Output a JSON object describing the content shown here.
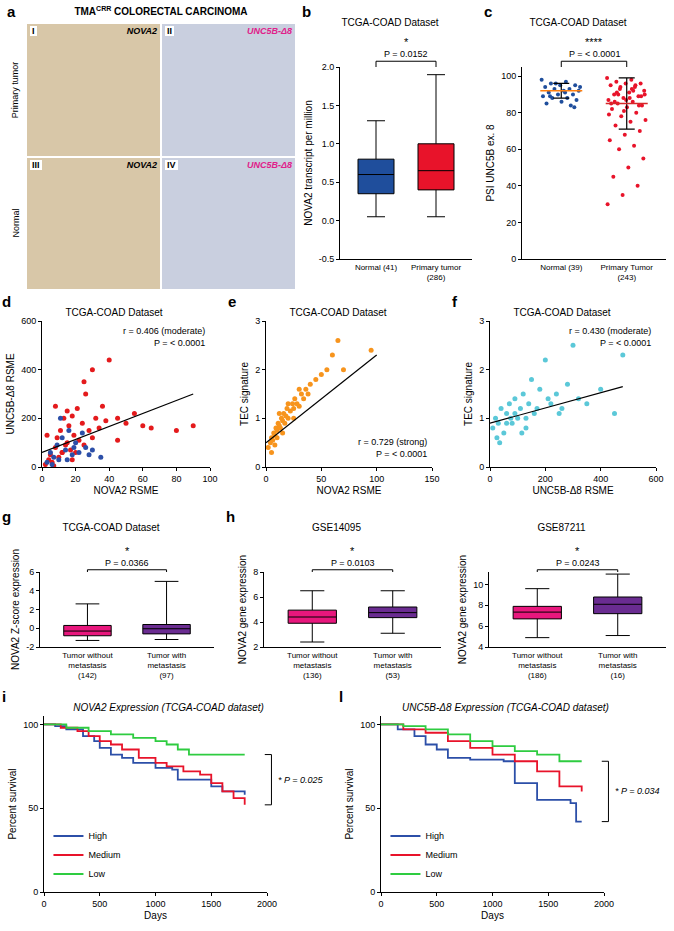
{
  "chart_data": [
    {
      "type": "image",
      "panel": "a",
      "title": "TMA",
      "title_superscript": "CRR",
      "title_rest": "COLORECTAL CARCINOMA",
      "rows": [
        {
          "label": "Primary tumor",
          "tiles": [
            {
              "label": "I",
              "stain": "NOVA2"
            },
            {
              "label": "II",
              "stain": "UNC5B-Δ8"
            }
          ]
        },
        {
          "label": "Normal",
          "tiles": [
            {
              "label": "III",
              "stain": "NOVA2"
            },
            {
              "label": "IV",
              "stain": "UNC5B-Δ8"
            }
          ]
        }
      ]
    },
    {
      "type": "box",
      "panel": "b",
      "title": "TCGA-COAD Dataset",
      "y_label": "NOVA2 transcript per million",
      "ylim": [
        -0.5,
        2.0
      ],
      "yticks": [
        -0.5,
        {
          "value": 0,
          "label": "0.0"
        },
        0.5,
        {
          "value": 1,
          "label": "1.0"
        },
        1.5,
        {
          "value": 2,
          "label": "2.0"
        }
      ],
      "grid": false,
      "groups": [
        {
          "name": "Normal (41)",
          "color": "#1f4e9c",
          "min": 0.05,
          "q1": 0.35,
          "median": 0.6,
          "q3": 0.8,
          "max": 1.3
        },
        {
          "name": "Primary tumor (286)",
          "color": "#e8132a",
          "min": 0.05,
          "q1": 0.4,
          "median": 0.65,
          "q3": 1.0,
          "max": 1.9
        }
      ],
      "significance": {
        "stars": "*",
        "p": "P = 0.0152"
      }
    },
    {
      "type": "strip",
      "panel": "c",
      "title": "TCGA-COAD Dataset",
      "y_label": "PSI UNC5B ex. 8",
      "ylim": [
        0,
        105
      ],
      "yticks": [
        0,
        20,
        40,
        60,
        80,
        100
      ],
      "grid": false,
      "groups": [
        {
          "name": "Normal (39)",
          "color": "#1f4e9c",
          "mean": 92,
          "sd": 4,
          "values": [
            98,
            97,
            96,
            95,
            95,
            94,
            93,
            93,
            92,
            92,
            91,
            90,
            90,
            89,
            88,
            88,
            87,
            86,
            85,
            84,
            96,
            94,
            91,
            89,
            83
          ]
        },
        {
          "name": "Primary Tumor (243)",
          "color": "#e8132a",
          "mean": 85,
          "sd": 14,
          "values": [
            99,
            98,
            97,
            96,
            96,
            95,
            94,
            93,
            92,
            91,
            90,
            89,
            88,
            87,
            86,
            85,
            84,
            83,
            82,
            80,
            78,
            76,
            75,
            73,
            70,
            68,
            65,
            62,
            60,
            55,
            50,
            45,
            40,
            35,
            30,
            93,
            91,
            89,
            87,
            85,
            95,
            94,
            90,
            88,
            86,
            84,
            81,
            79,
            92,
            90
          ]
        }
      ],
      "significance": {
        "stars": "****",
        "p": "P = < 0.0001"
      }
    },
    {
      "type": "scatter",
      "panel": "d",
      "title": "TCGA-COAD Dataset",
      "x_label": "NOVA2 RSME",
      "y_label": "UNC5B-Δ8 RSME",
      "xlim": [
        0,
        100
      ],
      "xticks": [
        0,
        20,
        40,
        60,
        80,
        100
      ],
      "ylim": [
        0,
        600
      ],
      "yticks": [
        0,
        200,
        400,
        600
      ],
      "grid": false,
      "series": [
        {
          "color": "#e41a1c",
          "x": [
            2,
            4,
            5,
            6,
            8,
            9,
            10,
            11,
            12,
            13,
            14,
            15,
            16,
            17,
            18,
            19,
            20,
            21,
            22,
            24,
            25,
            26,
            28,
            30,
            32,
            34,
            36,
            38,
            40,
            45,
            50,
            55,
            60,
            65,
            80,
            90,
            8,
            12,
            15,
            18,
            3,
            7,
            25,
            30,
            45
          ],
          "y": [
            10,
            30,
            50,
            20,
            80,
            120,
            40,
            150,
            60,
            200,
            90,
            100,
            170,
            70,
            210,
            130,
            60,
            240,
            110,
            180,
            90,
            300,
            150,
            120,
            200,
            160,
            250,
            190,
            440,
            200,
            180,
            220,
            170,
            160,
            150,
            170,
            250,
            60,
            230,
            30,
            130,
            5,
            350,
            400,
            110
          ]
        },
        {
          "color": "#2c4fa8",
          "x": [
            3,
            5,
            7,
            9,
            10,
            12,
            14,
            16,
            18,
            20,
            22,
            24,
            26,
            28,
            30,
            35,
            6,
            11,
            15,
            19
          ],
          "y": [
            20,
            60,
            40,
            90,
            30,
            120,
            70,
            150,
            50,
            100,
            60,
            140,
            80,
            50,
            70,
            40,
            10,
            200,
            30,
            80
          ]
        }
      ],
      "fit": {
        "x": [
          0,
          90
        ],
        "y": [
          60,
          300
        ]
      },
      "annotations": [
        "r = 0.406 (moderate)",
        "P = < 0.0001"
      ]
    },
    {
      "type": "scatter",
      "panel": "e",
      "title": "TCGA-COAD Dataset",
      "x_label": "NOVA2 RSME",
      "y_label": "TEC signature",
      "xlim": [
        0,
        150
      ],
      "xticks": [
        0,
        50,
        100,
        150
      ],
      "ylim": [
        0,
        3
      ],
      "yticks": [
        0,
        1,
        2,
        3
      ],
      "grid": false,
      "series": [
        {
          "color": "#f7941d",
          "x": [
            2,
            4,
            5,
            6,
            7,
            8,
            9,
            10,
            11,
            12,
            13,
            14,
            15,
            16,
            17,
            18,
            19,
            20,
            22,
            24,
            25,
            26,
            28,
            30,
            32,
            34,
            36,
            38,
            40,
            45,
            50,
            55,
            60,
            65,
            70,
            95,
            10,
            15,
            20,
            25,
            5,
            8,
            12,
            30
          ],
          "y": [
            0.4,
            0.5,
            0.6,
            0.55,
            0.7,
            0.65,
            0.8,
            0.75,
            0.9,
            0.85,
            0.8,
            1.0,
            0.95,
            1.1,
            0.9,
            1.05,
            1.2,
            1.0,
            1.15,
            1.3,
            1.2,
            1.4,
            1.3,
            1.25,
            1.5,
            1.4,
            1.6,
            1.5,
            1.7,
            1.8,
            1.9,
            2.0,
            2.3,
            2.6,
            2.0,
            2.4,
            0.6,
            0.7,
            1.3,
            1.0,
            0.3,
            0.45,
            1.1,
            1.6
          ]
        }
      ],
      "fit": {
        "x": [
          0,
          100
        ],
        "y": [
          0.5,
          2.3
        ]
      },
      "annotations": [
        "r = 0.729 (strong)",
        "P = < 0.0001"
      ]
    },
    {
      "type": "scatter",
      "panel": "f",
      "title": "TCGA-COAD Dataset",
      "x_label": "UNC5B-Δ8 RSME",
      "y_label": "TEC signature",
      "xlim": [
        0,
        600
      ],
      "xticks": [
        0,
        200,
        400,
        600
      ],
      "ylim": [
        0,
        3
      ],
      "yticks": [
        0,
        1,
        2,
        3
      ],
      "grid": false,
      "series": [
        {
          "color": "#5bc8d8",
          "x": [
            10,
            20,
            30,
            40,
            50,
            60,
            70,
            80,
            90,
            100,
            110,
            120,
            130,
            140,
            150,
            160,
            180,
            200,
            220,
            240,
            260,
            280,
            300,
            320,
            350,
            400,
            450,
            480,
            25,
            60,
            90,
            130,
            170,
            210,
            250,
            35,
            75,
            115
          ],
          "y": [
            0.8,
            1.0,
            0.9,
            1.2,
            0.7,
            1.1,
            1.3,
            0.9,
            1.4,
            1.0,
            1.2,
            1.5,
            0.8,
            1.3,
            1.8,
            1.1,
            1.6,
            2.2,
            1.3,
            1.5,
            1.2,
            1.7,
            2.5,
            1.4,
            1.3,
            1.6,
            1.1,
            2.3,
            0.6,
            0.9,
            1.1,
            1.0,
            1.2,
            1.4,
            1.1,
            0.5,
            1.0,
            0.7
          ]
        }
      ],
      "fit": {
        "x": [
          0,
          480
        ],
        "y": [
          0.9,
          1.65
        ]
      },
      "annotations": [
        "r = 0.430 (moderate)",
        "P = < 0.0001"
      ]
    },
    {
      "type": "box",
      "panel": "g",
      "title": "TCGA-COAD Dataset",
      "y_label": "NOVA2 Z-score expression",
      "ylim": [
        -2,
        6
      ],
      "yticks": [
        -2,
        0,
        2,
        4,
        6
      ],
      "grid": false,
      "groups": [
        {
          "name": "Tumor without metastasis (142)",
          "color": "#e8177d",
          "min": -1.3,
          "q1": -0.8,
          "median": -0.3,
          "q3": 0.3,
          "max": 2.6
        },
        {
          "name": "Tumor with metastasis (97)",
          "color": "#6a2c91",
          "min": -1.2,
          "q1": -0.6,
          "median": -0.05,
          "q3": 0.4,
          "max": 5.0
        }
      ],
      "significance": {
        "stars": "*",
        "p": "P = 0.0366"
      }
    },
    {
      "type": "box",
      "panel": "h",
      "title": "GSE14095",
      "y_label": "NOVA2 gene expression",
      "ylim": [
        2,
        8
      ],
      "yticks": [
        2,
        4,
        6,
        8
      ],
      "grid": false,
      "groups": [
        {
          "name": "Tumor without metastasis (136)",
          "color": "#e8177d",
          "min": 2.4,
          "q1": 3.9,
          "median": 4.4,
          "q3": 4.95,
          "max": 6.5
        },
        {
          "name": "Tumor with metastasis (53)",
          "color": "#6a2c91",
          "min": 3.1,
          "q1": 4.35,
          "median": 4.75,
          "q3": 5.2,
          "max": 6.5
        }
      ],
      "significance": {
        "stars": "*",
        "p": "P = 0.0103"
      }
    },
    {
      "type": "box",
      "title": "GSE87211",
      "y_label": "NOVA2 gene expression",
      "ylim": [
        4,
        11.2
      ],
      "yticks": [
        4,
        6,
        8,
        10
      ],
      "grid": false,
      "groups": [
        {
          "name": "Tumor without metastasis (186)",
          "color": "#e8177d",
          "min": 4.9,
          "q1": 6.7,
          "median": 7.35,
          "q3": 7.9,
          "max": 9.6
        },
        {
          "name": "Tumor with metastasis (16)",
          "color": "#6a2c91",
          "min": 5.1,
          "q1": 7.2,
          "median": 8.1,
          "q3": 8.8,
          "max": 11.0
        }
      ],
      "significance": {
        "stars": "*",
        "p": "P = 0.0243"
      }
    },
    {
      "type": "survival",
      "panel": "i",
      "title": "NOVA2 Expression (TCGA-COAD dataset)",
      "x_label": "Days",
      "y_label": "Percent survival",
      "xlim": [
        0,
        2000
      ],
      "xticks": [
        0,
        500,
        1000,
        1500,
        2000
      ],
      "ylim": [
        0,
        105
      ],
      "yticks": [
        0,
        50,
        100
      ],
      "grid": false,
      "legend": "lower left",
      "series": [
        {
          "name": "High",
          "color": "#2c4fa8",
          "x": [
            0,
            100,
            200,
            350,
            450,
            500,
            600,
            700,
            800,
            1000,
            1150,
            1200,
            1500,
            1600,
            1800
          ],
          "values": [
            100,
            99,
            97,
            93,
            90,
            86,
            82,
            80,
            77,
            74,
            73,
            67,
            63,
            60,
            58
          ]
        },
        {
          "name": "Medium",
          "color": "#e8132a",
          "x": [
            0,
            150,
            300,
            400,
            500,
            600,
            700,
            850,
            1000,
            1100,
            1250,
            1400,
            1500,
            1600,
            1700,
            1800
          ],
          "values": [
            100,
            98,
            96,
            93,
            90,
            88,
            85,
            80,
            77,
            75,
            72,
            70,
            65,
            60,
            56,
            52
          ]
        },
        {
          "name": "Low",
          "color": "#2ecc40",
          "x": [
            0,
            200,
            400,
            600,
            800,
            1000,
            1100,
            1200,
            1300,
            1800
          ],
          "values": [
            100,
            98,
            96,
            94,
            92,
            90,
            88,
            85,
            82,
            82
          ]
        }
      ],
      "significance": {
        "stars": "*",
        "p": "P = 0.025"
      }
    },
    {
      "type": "survival",
      "panel": "l",
      "title": "UNC5B-Δ8 Expression (TCGA-COAD dataset)",
      "x_label": "Days",
      "y_label": "Percent survival",
      "xlim": [
        0,
        2000
      ],
      "xticks": [
        0,
        500,
        1000,
        1500,
        2000
      ],
      "ylim": [
        0,
        105
      ],
      "yticks": [
        0,
        50,
        100
      ],
      "grid": false,
      "legend": "lower left",
      "series": [
        {
          "name": "High",
          "color": "#2c4fa8",
          "x": [
            0,
            150,
            300,
            400,
            500,
            600,
            800,
            1100,
            1200,
            1400,
            1700,
            1750,
            1800
          ],
          "values": [
            100,
            97,
            93,
            88,
            85,
            80,
            79,
            78,
            65,
            55,
            53,
            42,
            42
          ]
        },
        {
          "name": "Medium",
          "color": "#e8132a",
          "x": [
            0,
            200,
            400,
            600,
            800,
            1000,
            1200,
            1400,
            1600,
            1800
          ],
          "values": [
            100,
            97,
            95,
            90,
            86,
            82,
            78,
            72,
            63,
            60
          ]
        },
        {
          "name": "Low",
          "color": "#2ecc40",
          "x": [
            0,
            200,
            400,
            600,
            800,
            1000,
            1200,
            1400,
            1600,
            1800
          ],
          "values": [
            100,
            99,
            97,
            94,
            90,
            87,
            84,
            82,
            78,
            78
          ]
        }
      ],
      "significance": {
        "stars": "*",
        "p": "P = 0.034"
      }
    }
  ]
}
